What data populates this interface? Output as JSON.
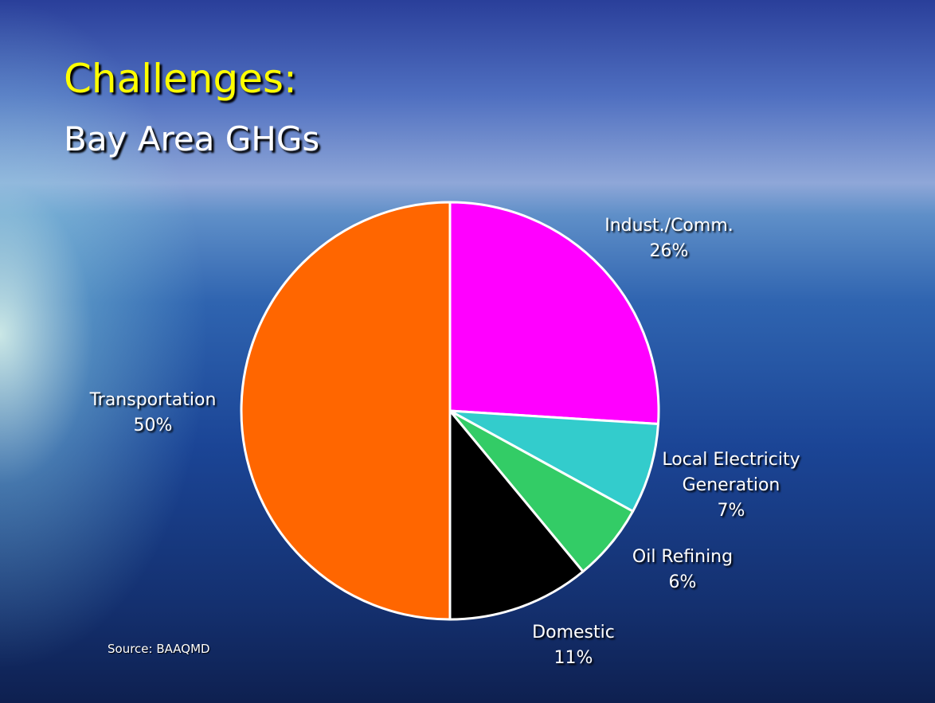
{
  "chart_data": {
    "type": "pie",
    "title": "Challenges:",
    "subtitle": "Bay Area GHGs",
    "categories": [
      "Indust./Comm.",
      "Local Electricity Generation",
      "Oil Refining",
      "Domestic",
      "Transportation"
    ],
    "values": [
      26,
      7,
      6,
      11,
      50
    ],
    "value_labels": [
      "26%",
      "7%",
      "6%",
      "11%",
      "50%"
    ],
    "colors": [
      "#ff00ff",
      "#33cccc",
      "#33cc66",
      "#000000",
      "#ff6600"
    ],
    "source": "Source: BAAQMD"
  }
}
